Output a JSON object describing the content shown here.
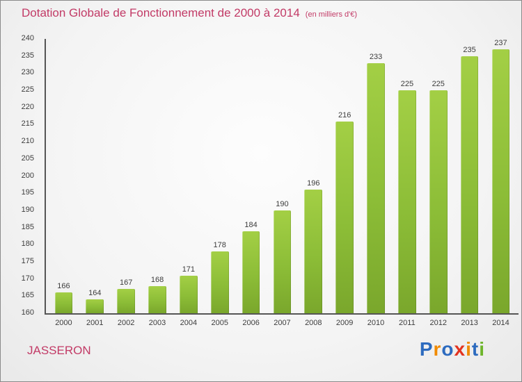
{
  "header": {
    "title": "Dotation Globale de Fonctionnement de 2000 à 2014",
    "subtitle": "(en milliers d'€)"
  },
  "chart_data": {
    "type": "bar",
    "title": "Dotation Globale de Fonctionnement de 2000 à 2014",
    "unit": "en milliers d'€",
    "categories": [
      "2000",
      "2001",
      "2002",
      "2003",
      "2004",
      "2005",
      "2006",
      "2007",
      "2008",
      "2009",
      "2010",
      "2011",
      "2012",
      "2013",
      "2014"
    ],
    "values": [
      166,
      164,
      167,
      168,
      171,
      178,
      184,
      190,
      196,
      216,
      233,
      225,
      225,
      235,
      237
    ],
    "xlabel": "",
    "ylabel": "",
    "ylim": [
      160,
      240
    ],
    "ytick_step": 5,
    "grid": false,
    "bar_color_top": "#a3cf45",
    "bar_color_bottom": "#7aa72c"
  },
  "footer": {
    "place": "JASSERON",
    "logo_letters": [
      {
        "ch": "P",
        "color": "#2d6bbf"
      },
      {
        "ch": "r",
        "color": "#f08a00"
      },
      {
        "ch": "o",
        "color": "#2d6bbf"
      },
      {
        "ch": "x",
        "color": "#e2331f"
      },
      {
        "ch": "i",
        "color": "#f08a00"
      },
      {
        "ch": "t",
        "color": "#2d6bbf"
      },
      {
        "ch": "i",
        "color": "#6eb52b"
      }
    ]
  },
  "colors": {
    "title": "#c23a66",
    "axis": "#555555",
    "label_text": "#3c3c3c"
  }
}
